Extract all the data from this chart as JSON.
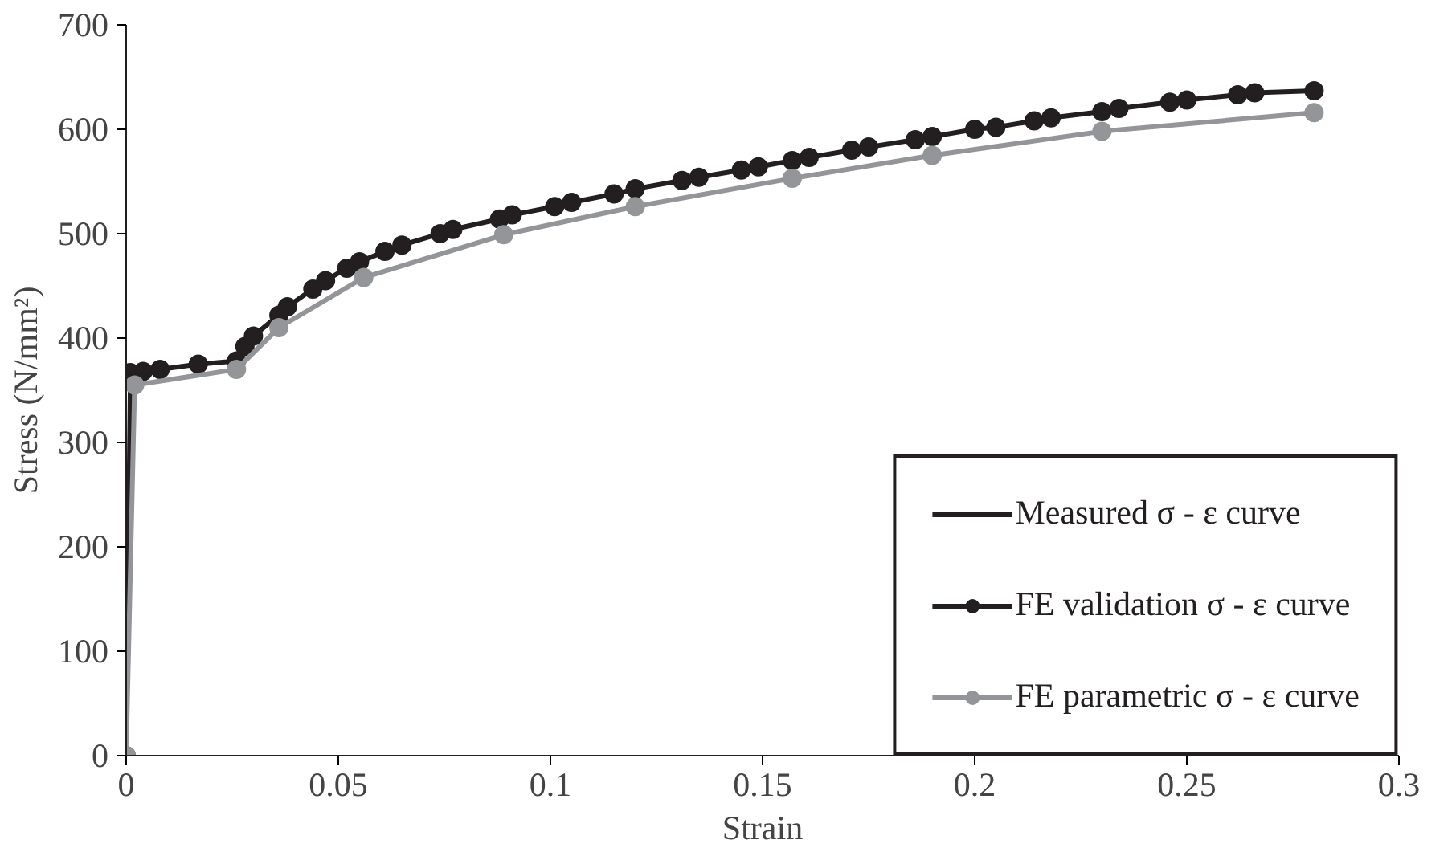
{
  "chart_data": {
    "type": "line",
    "xlabel": "Strain",
    "ylabel": "Stress (N/mm²)",
    "xlim": [
      0,
      0.3
    ],
    "ylim": [
      0,
      700
    ],
    "xticks": [
      0,
      0.05,
      0.1,
      0.15,
      0.2,
      0.25,
      0.3
    ],
    "yticks": [
      0,
      100,
      200,
      300,
      400,
      500,
      600,
      700
    ],
    "grid": false,
    "legend": "bottom right",
    "series": [
      {
        "name": "Measured σ - ε curve",
        "color": "#231f20",
        "marker": "none"
      },
      {
        "name": "FE validation σ - ε curve",
        "color": "#231f20",
        "marker": "circle",
        "x": [
          0,
          0.001,
          0.004,
          0.008,
          0.017,
          0.026,
          0.028,
          0.03,
          0.036,
          0.038,
          0.044,
          0.047,
          0.052,
          0.055,
          0.061,
          0.065,
          0.074,
          0.077,
          0.088,
          0.091,
          0.101,
          0.105,
          0.115,
          0.12,
          0.131,
          0.135,
          0.145,
          0.149,
          0.157,
          0.161,
          0.171,
          0.175,
          0.186,
          0.19,
          0.2,
          0.205,
          0.214,
          0.218,
          0.23,
          0.234,
          0.246,
          0.25,
          0.262,
          0.266,
          0.28
        ],
        "values": [
          0,
          367,
          368,
          370,
          375,
          378,
          392,
          402,
          422,
          430,
          447,
          455,
          467,
          473,
          483,
          489,
          500,
          504,
          514,
          518,
          526,
          530,
          538,
          543,
          551,
          554,
          561,
          564,
          570,
          573,
          580,
          583,
          590,
          593,
          600,
          602,
          608,
          611,
          617,
          620,
          626,
          628,
          633,
          635,
          637
        ]
      },
      {
        "name": "FE parametric σ - ε curve",
        "color": "#939598",
        "marker": "circle",
        "x": [
          0,
          0.002,
          0.026,
          0.036,
          0.056,
          0.089,
          0.12,
          0.157,
          0.19,
          0.23,
          0.28
        ],
        "values": [
          0,
          355,
          370,
          410,
          458,
          499,
          526,
          553,
          575,
          598,
          616
        ]
      }
    ]
  }
}
